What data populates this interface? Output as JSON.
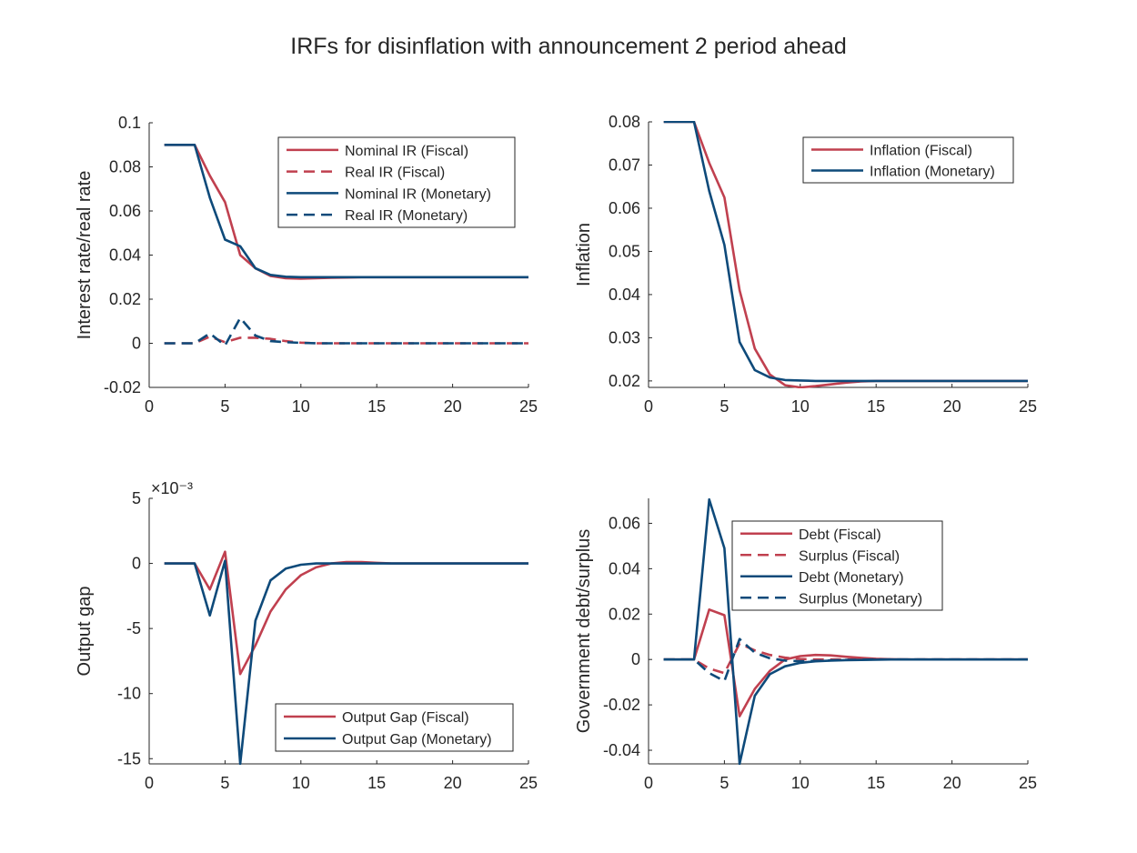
{
  "figure": {
    "title": "IRFs for disinflation with announcement 2 period ahead"
  },
  "colors": {
    "fiscal": "#c0404f",
    "monetary": "#0e4a7a",
    "axis": "#262626",
    "background": "#ffffff"
  },
  "chart_data": [
    {
      "type": "line",
      "position": "top-left",
      "xlabel": "",
      "ylabel": "Interest rate/real rate",
      "xlim": [
        0,
        25
      ],
      "ylim": [
        -0.02,
        0.1
      ],
      "xticks": [
        "0",
        "5",
        "10",
        "15",
        "20",
        "25"
      ],
      "yticks": [
        "-0.02",
        "0",
        "0.02",
        "0.04",
        "0.06",
        "0.08",
        "0.1"
      ],
      "ytick_values": [
        -0.02,
        0,
        0.02,
        0.04,
        0.06,
        0.08,
        0.1
      ],
      "exponent_label": "",
      "legend_position": "top-right",
      "x": [
        1,
        2,
        3,
        4,
        5,
        6,
        7,
        8,
        9,
        10,
        11,
        12,
        13,
        14,
        15,
        16,
        17,
        18,
        19,
        20,
        21,
        22,
        23,
        24,
        25
      ],
      "series": [
        {
          "name": "Nominal IR (Fiscal)",
          "color": "fiscal",
          "style": "solid",
          "values": [
            0.09,
            0.09,
            0.09,
            0.076,
            0.064,
            0.04,
            0.034,
            0.0305,
            0.0295,
            0.0293,
            0.0295,
            0.0297,
            0.0298,
            0.03,
            0.03,
            0.03,
            0.03,
            0.03,
            0.03,
            0.03,
            0.03,
            0.03,
            0.03,
            0.03,
            0.03
          ]
        },
        {
          "name": "Real IR (Fiscal)",
          "color": "fiscal",
          "style": "dashed",
          "values": [
            0,
            0,
            0,
            0.003,
            0.0005,
            0.0025,
            0.0025,
            0.002,
            0.001,
            0.0003,
            0,
            0,
            0,
            0,
            0,
            0,
            0,
            0,
            0,
            0,
            0,
            0,
            0,
            0,
            0
          ]
        },
        {
          "name": "Nominal IR (Monetary)",
          "color": "monetary",
          "style": "solid",
          "values": [
            0.09,
            0.09,
            0.09,
            0.066,
            0.047,
            0.044,
            0.034,
            0.031,
            0.0302,
            0.03,
            0.03,
            0.03,
            0.03,
            0.03,
            0.03,
            0.03,
            0.03,
            0.03,
            0.03,
            0.03,
            0.03,
            0.03,
            0.03,
            0.03,
            0.03
          ]
        },
        {
          "name": "Real IR (Monetary)",
          "color": "monetary",
          "style": "dashed",
          "values": [
            0,
            0,
            0,
            0.0045,
            -0.001,
            0.0115,
            0.0035,
            0.001,
            0.0005,
            0.0002,
            0,
            0,
            0,
            0,
            0,
            0,
            0,
            0,
            0,
            0,
            0,
            0,
            0,
            0,
            0
          ]
        }
      ]
    },
    {
      "type": "line",
      "position": "top-right",
      "xlabel": "",
      "ylabel": "Inflation",
      "xlim": [
        0,
        25
      ],
      "ylim": [
        0.0185,
        0.08
      ],
      "xticks": [
        "0",
        "5",
        "10",
        "15",
        "20",
        "25"
      ],
      "yticks": [
        "0.02",
        "0.03",
        "0.04",
        "0.05",
        "0.06",
        "0.07",
        "0.08"
      ],
      "ytick_values": [
        0.02,
        0.03,
        0.04,
        0.05,
        0.06,
        0.07,
        0.08
      ],
      "exponent_label": "",
      "legend_position": "top-right",
      "x": [
        1,
        2,
        3,
        4,
        5,
        6,
        7,
        8,
        9,
        10,
        11,
        12,
        13,
        14,
        15,
        16,
        17,
        18,
        19,
        20,
        21,
        22,
        23,
        24,
        25
      ],
      "series": [
        {
          "name": "Inflation (Fiscal)",
          "color": "fiscal",
          "style": "solid",
          "values": [
            0.08,
            0.08,
            0.08,
            0.0705,
            0.0625,
            0.041,
            0.0275,
            0.0215,
            0.019,
            0.0185,
            0.0188,
            0.0192,
            0.0196,
            0.0199,
            0.02,
            0.02,
            0.02,
            0.02,
            0.02,
            0.02,
            0.02,
            0.02,
            0.02,
            0.02,
            0.02
          ]
        },
        {
          "name": "Inflation (Monetary)",
          "color": "monetary",
          "style": "solid",
          "values": [
            0.08,
            0.08,
            0.08,
            0.064,
            0.0515,
            0.029,
            0.0225,
            0.0208,
            0.0202,
            0.0201,
            0.02,
            0.02,
            0.02,
            0.02,
            0.02,
            0.02,
            0.02,
            0.02,
            0.02,
            0.02,
            0.02,
            0.02,
            0.02,
            0.02,
            0.02
          ]
        }
      ]
    },
    {
      "type": "line",
      "position": "bottom-left",
      "xlabel": "",
      "ylabel": "Output gap",
      "xlim": [
        0,
        25
      ],
      "ylim": [
        -15.4,
        5
      ],
      "xticks": [
        "0",
        "5",
        "10",
        "15",
        "20",
        "25"
      ],
      "yticks": [
        "-15",
        "-10",
        "-5",
        "0",
        "5"
      ],
      "ytick_values": [
        -15,
        -10,
        -5,
        0,
        5
      ],
      "exponent_label": "×10⁻³",
      "legend_position": "bottom-right",
      "x": [
        1,
        2,
        3,
        4,
        5,
        6,
        7,
        8,
        9,
        10,
        11,
        12,
        13,
        14,
        15,
        16,
        17,
        18,
        19,
        20,
        21,
        22,
        23,
        24,
        25
      ],
      "series": [
        {
          "name": "Output Gap (Fiscal)",
          "color": "fiscal",
          "style": "solid",
          "values": [
            0,
            0,
            0,
            -2,
            0.9,
            -8.5,
            -6.3,
            -3.7,
            -2,
            -0.9,
            -0.3,
            0,
            0.1,
            0.1,
            0.05,
            0,
            0,
            0,
            0,
            0,
            0,
            0,
            0,
            0,
            0
          ]
        },
        {
          "name": "Output Gap (Monetary)",
          "color": "monetary",
          "style": "solid",
          "values": [
            0,
            0,
            0,
            -4,
            0.2,
            -15.4,
            -4.4,
            -1.3,
            -0.4,
            -0.1,
            0,
            0,
            0,
            0,
            0,
            0,
            0,
            0,
            0,
            0,
            0,
            0,
            0,
            0,
            0
          ]
        }
      ]
    },
    {
      "type": "line",
      "position": "bottom-right",
      "xlabel": "",
      "ylabel": "Government debt/surplus",
      "xlim": [
        0,
        25
      ],
      "ylim": [
        -0.046,
        0.071
      ],
      "xticks": [
        "0",
        "5",
        "10",
        "15",
        "20",
        "25"
      ],
      "yticks": [
        "-0.04",
        "-0.02",
        "0",
        "0.02",
        "0.04",
        "0.06"
      ],
      "ytick_values": [
        -0.04,
        -0.02,
        0,
        0.02,
        0.04,
        0.06
      ],
      "exponent_label": "",
      "legend_position": "top-right",
      "x": [
        1,
        2,
        3,
        4,
        5,
        6,
        7,
        8,
        9,
        10,
        11,
        12,
        13,
        14,
        15,
        16,
        17,
        18,
        19,
        20,
        21,
        22,
        23,
        24,
        25
      ],
      "series": [
        {
          "name": "Debt (Fiscal)",
          "color": "fiscal",
          "style": "solid",
          "values": [
            0,
            0,
            0,
            0.022,
            0.0195,
            -0.025,
            -0.013,
            -0.005,
            0,
            0.0015,
            0.002,
            0.0018,
            0.0012,
            0.0007,
            0.0003,
            0.0001,
            0,
            0,
            0,
            0,
            0,
            0,
            0,
            0,
            0
          ]
        },
        {
          "name": "Surplus (Fiscal)",
          "color": "fiscal",
          "style": "dashed",
          "values": [
            0,
            0,
            0,
            -0.004,
            -0.006,
            0.007,
            0.004,
            0.002,
            0.0008,
            0.0002,
            0,
            0,
            0,
            0,
            0,
            0,
            0,
            0,
            0,
            0,
            0,
            0,
            0,
            0,
            0
          ]
        },
        {
          "name": "Debt (Monetary)",
          "color": "monetary",
          "style": "solid",
          "values": [
            0,
            0,
            0,
            0.0705,
            0.049,
            -0.046,
            -0.016,
            -0.0065,
            -0.003,
            -0.0015,
            -0.0008,
            -0.0005,
            -0.0003,
            -0.0002,
            -0.0001,
            0,
            0,
            0,
            0,
            0,
            0,
            0,
            0,
            0,
            0
          ]
        },
        {
          "name": "Surplus (Monetary)",
          "color": "monetary",
          "style": "dashed",
          "values": [
            0,
            0,
            0,
            -0.006,
            -0.0095,
            0.009,
            0.003,
            0.0005,
            -0.0005,
            -0.0008,
            -0.0006,
            -0.0004,
            -0.0002,
            -0.0001,
            0,
            0,
            0,
            0,
            0,
            0,
            0,
            0,
            0,
            0,
            0
          ]
        }
      ]
    }
  ]
}
